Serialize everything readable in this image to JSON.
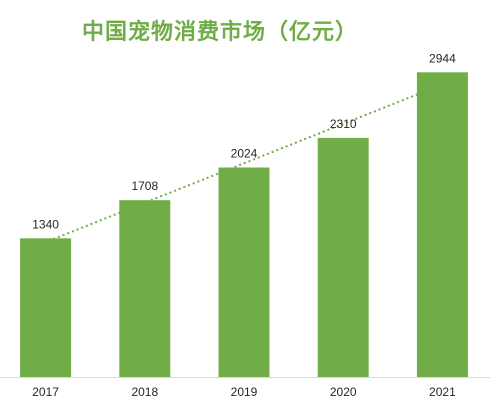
{
  "chart_data": {
    "type": "bar",
    "title": "中国宠物消费市场（亿元）",
    "categories": [
      "2017",
      "2018",
      "2019",
      "2020",
      "2021"
    ],
    "values": [
      1340,
      1708,
      2024,
      2310,
      2944
    ],
    "data_labels": [
      "1340",
      "1708",
      "2024",
      "2310",
      "2944"
    ],
    "trendline": true,
    "trendline_style": "dotted",
    "ylim": [
      0,
      3200
    ],
    "grid": false,
    "legend": "none",
    "colors": {
      "bar": "#70ad47",
      "trendline": "#70ad47",
      "title": "#70ad47",
      "axis": "#d9d9d9",
      "text": "#262626"
    }
  }
}
